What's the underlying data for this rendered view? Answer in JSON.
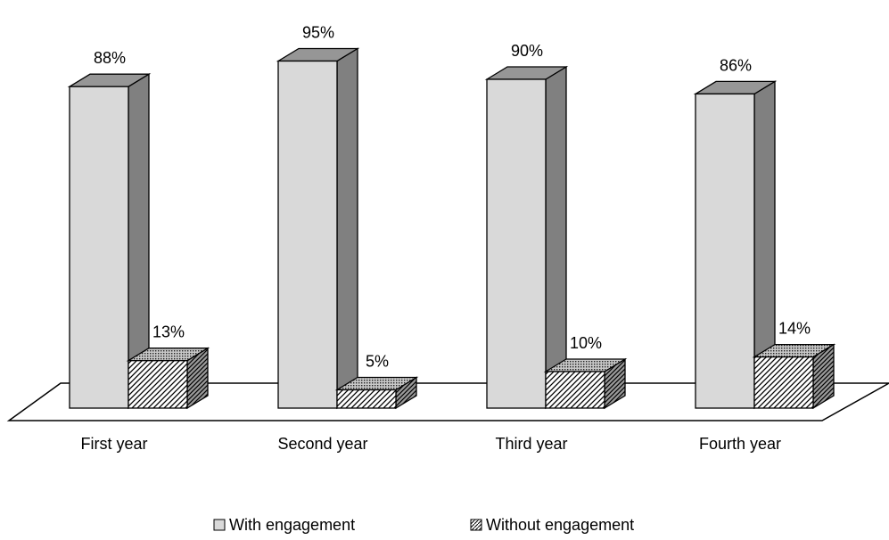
{
  "chart_data": {
    "type": "bar",
    "categories": [
      "First year",
      "Second year",
      "Third year",
      "Fourth year"
    ],
    "series": [
      {
        "name": "With engagement",
        "values": [
          88,
          95,
          90,
          86
        ],
        "labels": [
          "88%",
          "95%",
          "90%",
          "86%"
        ]
      },
      {
        "name": "Without engagement",
        "values": [
          13,
          5,
          10,
          14
        ],
        "labels": [
          "13%",
          "5%",
          "10%",
          "14%"
        ]
      }
    ],
    "value_unit": "%",
    "ylim": [
      0,
      100
    ],
    "grid": false,
    "legend_position": "bottom",
    "colors": {
      "front_light": "#d9d9d9",
      "side_dark": "#808080",
      "top_mid": "#969696",
      "outline": "#000000"
    }
  }
}
